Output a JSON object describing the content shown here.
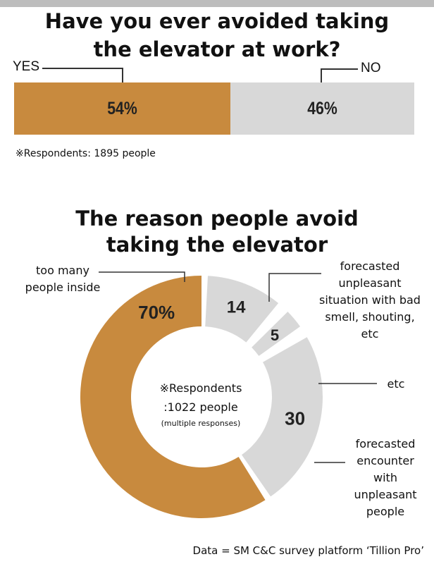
{
  "colors": {
    "orange": "#c88a3e",
    "gray": "#d8d8d8",
    "line": "#333333"
  },
  "section1": {
    "title_line1": "Have you ever avoided taking",
    "title_line2": "the elevator at work?",
    "yes_label": "YES",
    "no_label": "NO",
    "respondents_note": "※Respondents: 1895 people"
  },
  "section2": {
    "title_line1": "The reason people avoid",
    "title_line2": "taking the elevator",
    "center_line1": "※Respondents",
    "center_line2": ":1022 people",
    "center_line3": "(multiple responses)"
  },
  "source": "Data = SM C&C survey platform ‘Tillion Pro’",
  "chart_data": [
    {
      "type": "bar",
      "orientation": "horizontal-stacked",
      "title": "Have you ever avoided taking the elevator at work?",
      "categories": [
        "YES",
        "NO"
      ],
      "values": [
        54,
        46
      ],
      "value_labels": [
        "54%",
        "46%"
      ],
      "colors": [
        "#c88a3e",
        "#d8d8d8"
      ]
    },
    {
      "type": "pie",
      "variant": "donut",
      "title": "The reason people avoid taking the elevator",
      "categories": [
        "too many people inside",
        "forecasted unpleasant situation with bad smell, shouting, etc",
        "etc",
        "forecasted encounter with unpleasant people"
      ],
      "values": [
        70,
        14,
        5,
        30
      ],
      "value_labels": [
        "70%",
        "14",
        "5",
        "30"
      ],
      "colors": [
        "#c88a3e",
        "#d8d8d8",
        "#d8d8d8",
        "#d8d8d8"
      ]
    }
  ]
}
